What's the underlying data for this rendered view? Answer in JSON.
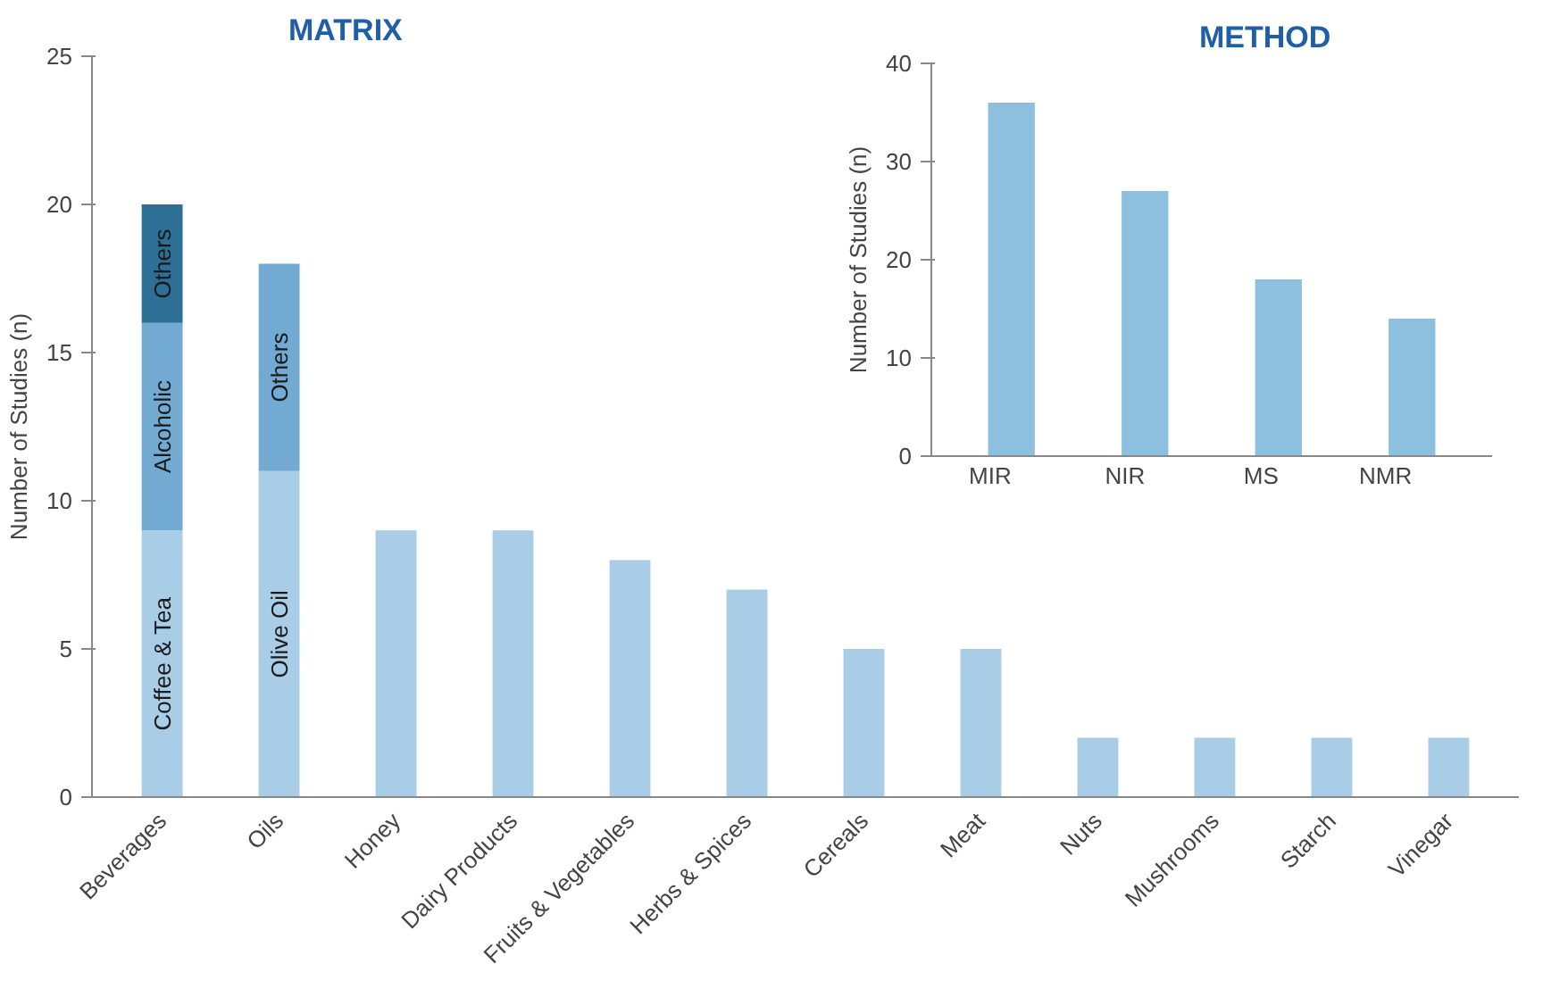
{
  "chart_data": [
    {
      "type": "bar",
      "stacked": true,
      "title": "MATRIX",
      "ylabel": "Number of Studies (n)",
      "categories": [
        "Beverages",
        "Oils",
        "Honey",
        "Dairy Products",
        "Fruits & Vegetables",
        "Herbs & Spices",
        "Cereals",
        "Meat",
        "Nuts",
        "Mushrooms",
        "Starch",
        "Vinegar"
      ],
      "series": [
        {
          "color": "#a9cde6",
          "values": [
            9,
            11,
            9,
            9,
            8,
            7,
            5,
            5,
            2,
            2,
            2,
            2
          ],
          "value_labels": [
            "Coffee & Tea",
            "Olive Oil",
            null,
            null,
            null,
            null,
            null,
            null,
            null,
            null,
            null,
            null
          ]
        },
        {
          "color": "#72aad2",
          "values": [
            7,
            7,
            null,
            null,
            null,
            null,
            null,
            null,
            null,
            null,
            null,
            null
          ],
          "value_labels": [
            "Alcoholic",
            "Others",
            null,
            null,
            null,
            null,
            null,
            null,
            null,
            null,
            null,
            null
          ]
        },
        {
          "color": "#2d6f95",
          "values": [
            4,
            null,
            null,
            null,
            null,
            null,
            null,
            null,
            null,
            null,
            null,
            null
          ],
          "value_labels": [
            "Others",
            null,
            null,
            null,
            null,
            null,
            null,
            null,
            null,
            null,
            null,
            null
          ]
        }
      ],
      "ylim": [
        0,
        25
      ],
      "yticks": [
        0,
        5,
        10,
        15,
        20,
        25
      ],
      "grid": false
    },
    {
      "type": "bar",
      "title": "METHOD",
      "ylabel": "Number of Studies (n)",
      "categories": [
        "MIR",
        "NIR",
        "MS",
        "NMR"
      ],
      "values": [
        36,
        27,
        18,
        14
      ],
      "color": "#8cc0de",
      "ylim": [
        0,
        40
      ],
      "yticks": [
        0,
        10,
        20,
        30,
        40
      ],
      "grid": false
    }
  ]
}
